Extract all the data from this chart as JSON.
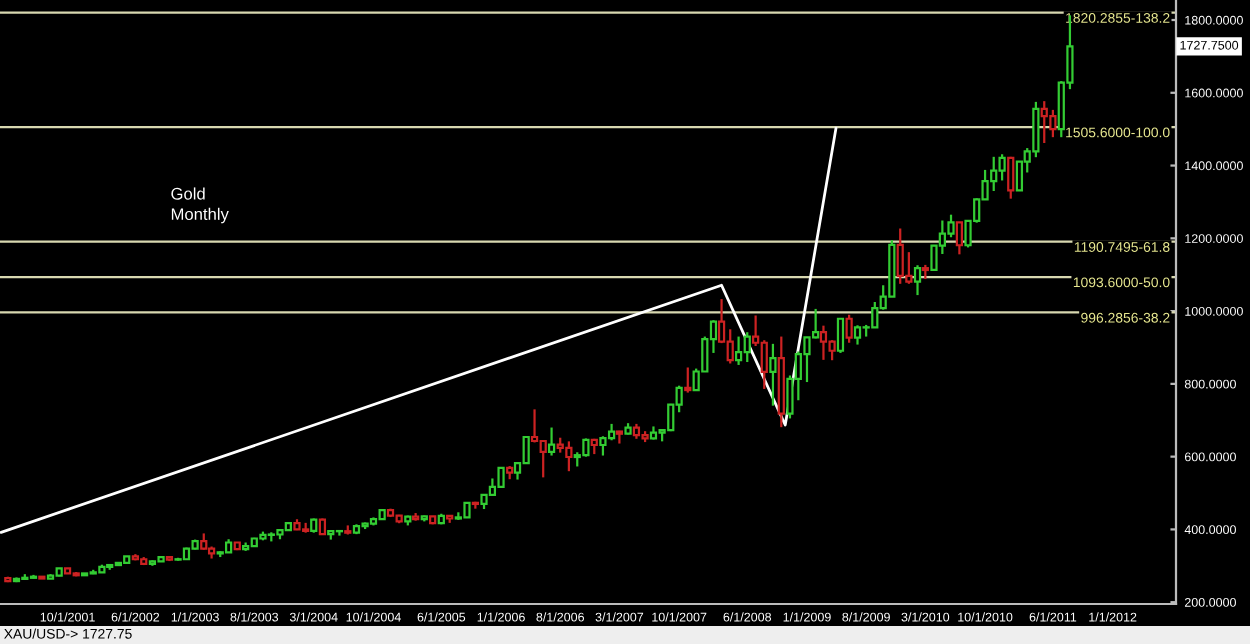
{
  "chart_data": {
    "type": "candlestick",
    "x": [
      "2001-03",
      "2001-04",
      "2001-05",
      "2001-06",
      "2001-07",
      "2001-08",
      "2001-09",
      "2001-10",
      "2001-11",
      "2001-12",
      "2002-01",
      "2002-02",
      "2002-03",
      "2002-04",
      "2002-05",
      "2002-06",
      "2002-07",
      "2002-08",
      "2002-09",
      "2002-10",
      "2002-11",
      "2002-12",
      "2003-01",
      "2003-02",
      "2003-03",
      "2003-04",
      "2003-05",
      "2003-06",
      "2003-07",
      "2003-08",
      "2003-09",
      "2003-10",
      "2003-11",
      "2003-12",
      "2004-01",
      "2004-02",
      "2004-03",
      "2004-04",
      "2004-05",
      "2004-06",
      "2004-07",
      "2004-08",
      "2004-09",
      "2004-10",
      "2004-11",
      "2004-12",
      "2005-01",
      "2005-02",
      "2005-03",
      "2005-04",
      "2005-05",
      "2005-06",
      "2005-07",
      "2005-08",
      "2005-09",
      "2005-10",
      "2005-11",
      "2005-12",
      "2006-01",
      "2006-02",
      "2006-03",
      "2006-04",
      "2006-05",
      "2006-06",
      "2006-07",
      "2006-08",
      "2006-09",
      "2006-10",
      "2006-11",
      "2006-12",
      "2007-01",
      "2007-02",
      "2007-03",
      "2007-04",
      "2007-05",
      "2007-06",
      "2007-07",
      "2007-08",
      "2007-09",
      "2007-10",
      "2007-11",
      "2007-12",
      "2008-01",
      "2008-02",
      "2008-03",
      "2008-04",
      "2008-05",
      "2008-06",
      "2008-07",
      "2008-08",
      "2008-09",
      "2008-10",
      "2008-11",
      "2008-12",
      "2009-01",
      "2009-02",
      "2009-03",
      "2009-04",
      "2009-05",
      "2009-06",
      "2009-07",
      "2009-08",
      "2009-09",
      "2009-10",
      "2009-11",
      "2009-12",
      "2010-01",
      "2010-02",
      "2010-03",
      "2010-04",
      "2010-05",
      "2010-06",
      "2010-07",
      "2010-08",
      "2010-09",
      "2010-10",
      "2010-11",
      "2010-12",
      "2011-01",
      "2011-02",
      "2011-03",
      "2011-04",
      "2011-05",
      "2011-06",
      "2011-07",
      "2011-08"
    ],
    "ohlc": [
      [
        266,
        270,
        255,
        258
      ],
      [
        258,
        268,
        255,
        264
      ],
      [
        264,
        277,
        263,
        267
      ],
      [
        267,
        275,
        265,
        270
      ],
      [
        270,
        272,
        264,
        265
      ],
      [
        265,
        277,
        264,
        273
      ],
      [
        273,
        293,
        271,
        293
      ],
      [
        293,
        294,
        278,
        279
      ],
      [
        279,
        283,
        271,
        274
      ],
      [
        274,
        280,
        272,
        279
      ],
      [
        279,
        289,
        277,
        282
      ],
      [
        282,
        303,
        281,
        297
      ],
      [
        297,
        304,
        289,
        302
      ],
      [
        302,
        310,
        300,
        308
      ],
      [
        308,
        327,
        307,
        326
      ],
      [
        326,
        332,
        315,
        318
      ],
      [
        318,
        324,
        302,
        305
      ],
      [
        305,
        315,
        300,
        312
      ],
      [
        312,
        326,
        311,
        324
      ],
      [
        324,
        325,
        313,
        317
      ],
      [
        317,
        322,
        314,
        318
      ],
      [
        318,
        350,
        317,
        347
      ],
      [
        347,
        372,
        345,
        368
      ],
      [
        368,
        389,
        344,
        347
      ],
      [
        347,
        353,
        320,
        334
      ],
      [
        334,
        340,
        324,
        337
      ],
      [
        337,
        373,
        336,
        364
      ],
      [
        364,
        365,
        343,
        346
      ],
      [
        346,
        364,
        341,
        354
      ],
      [
        354,
        377,
        353,
        375
      ],
      [
        375,
        394,
        370,
        385
      ],
      [
        385,
        392,
        367,
        386
      ],
      [
        386,
        401,
        373,
        398
      ],
      [
        398,
        418,
        397,
        417
      ],
      [
        417,
        428,
        398,
        400
      ],
      [
        400,
        418,
        391,
        396
      ],
      [
        396,
        430,
        391,
        427
      ],
      [
        427,
        430,
        386,
        387
      ],
      [
        387,
        396,
        372,
        395
      ],
      [
        395,
        398,
        383,
        395
      ],
      [
        395,
        411,
        386,
        391
      ],
      [
        391,
        414,
        387,
        409
      ],
      [
        409,
        419,
        401,
        416
      ],
      [
        416,
        433,
        411,
        428
      ],
      [
        428,
        455,
        427,
        453
      ],
      [
        453,
        457,
        434,
        438
      ],
      [
        438,
        440,
        417,
        422
      ],
      [
        422,
        438,
        411,
        435
      ],
      [
        435,
        445,
        424,
        428
      ],
      [
        428,
        438,
        422,
        436
      ],
      [
        436,
        437,
        414,
        417
      ],
      [
        417,
        443,
        414,
        437
      ],
      [
        437,
        438,
        418,
        430
      ],
      [
        430,
        447,
        426,
        433
      ],
      [
        433,
        475,
        433,
        473
      ],
      [
        473,
        476,
        457,
        470
      ],
      [
        470,
        497,
        456,
        495
      ],
      [
        495,
        540,
        492,
        517
      ],
      [
        517,
        571,
        515,
        569
      ],
      [
        569,
        574,
        538,
        556
      ],
      [
        556,
        585,
        537,
        582
      ],
      [
        582,
        654,
        582,
        654
      ],
      [
        654,
        730,
        639,
        643
      ],
      [
        643,
        645,
        543,
        613
      ],
      [
        613,
        680,
        603,
        633
      ],
      [
        633,
        652,
        611,
        624
      ],
      [
        624,
        642,
        560,
        599
      ],
      [
        599,
        612,
        573,
        604
      ],
      [
        604,
        650,
        600,
        646
      ],
      [
        646,
        649,
        607,
        632
      ],
      [
        632,
        656,
        603,
        651
      ],
      [
        651,
        690,
        645,
        669
      ],
      [
        669,
        671,
        636,
        663
      ],
      [
        663,
        692,
        661,
        680
      ],
      [
        680,
        690,
        649,
        659
      ],
      [
        659,
        670,
        640,
        650
      ],
      [
        650,
        683,
        647,
        666
      ],
      [
        666,
        675,
        642,
        673
      ],
      [
        673,
        745,
        670,
        743
      ],
      [
        743,
        795,
        722,
        789
      ],
      [
        789,
        845,
        776,
        783
      ],
      [
        783,
        842,
        781,
        834
      ],
      [
        834,
        930,
        834,
        923
      ],
      [
        923,
        975,
        885,
        971
      ],
      [
        971,
        1033,
        912,
        916
      ],
      [
        916,
        950,
        856,
        865
      ],
      [
        865,
        930,
        852,
        887
      ],
      [
        887,
        942,
        860,
        930
      ],
      [
        930,
        988,
        904,
        913
      ],
      [
        913,
        920,
        786,
        833
      ],
      [
        833,
        910,
        740,
        871
      ],
      [
        871,
        930,
        681,
        718
      ],
      [
        718,
        823,
        705,
        814
      ],
      [
        814,
        889,
        755,
        882
      ],
      [
        882,
        929,
        805,
        928
      ],
      [
        928,
        1006,
        925,
        942
      ],
      [
        942,
        960,
        866,
        916
      ],
      [
        916,
        920,
        865,
        891
      ],
      [
        891,
        980,
        885,
        979
      ],
      [
        979,
        990,
        913,
        927
      ],
      [
        927,
        961,
        908,
        955
      ],
      [
        955,
        962,
        930,
        955
      ],
      [
        955,
        1025,
        955,
        1008
      ],
      [
        1008,
        1071,
        1004,
        1040
      ],
      [
        1040,
        1195,
        1040,
        1182
      ],
      [
        1182,
        1227,
        1075,
        1097
      ],
      [
        1097,
        1162,
        1075,
        1081
      ],
      [
        1081,
        1126,
        1044,
        1118
      ],
      [
        1118,
        1127,
        1088,
        1113
      ],
      [
        1113,
        1180,
        1113,
        1180
      ],
      [
        1180,
        1249,
        1157,
        1213
      ],
      [
        1213,
        1265,
        1203,
        1244
      ],
      [
        1244,
        1245,
        1156,
        1181
      ],
      [
        1181,
        1248,
        1175,
        1248
      ],
      [
        1248,
        1310,
        1243,
        1307
      ],
      [
        1307,
        1388,
        1306,
        1357
      ],
      [
        1357,
        1424,
        1330,
        1386
      ],
      [
        1386,
        1431,
        1359,
        1421
      ],
      [
        1421,
        1424,
        1309,
        1332
      ],
      [
        1332,
        1412,
        1331,
        1411
      ],
      [
        1411,
        1448,
        1381,
        1439
      ],
      [
        1439,
        1575,
        1423,
        1556
      ],
      [
        1556,
        1577,
        1462,
        1536
      ],
      [
        1536,
        1553,
        1478,
        1500
      ],
      [
        1500,
        1632,
        1478,
        1628
      ],
      [
        1628,
        1813,
        1610,
        1727.75
      ]
    ],
    "series": [
      {
        "type": "line",
        "x": [
          "2001-02-05",
          "2008-03-01",
          "2008-10-15",
          "2009-04-15"
        ],
        "values": [
          392,
          1071,
          687,
          1503
        ],
        "color": "#ffffff"
      }
    ],
    "ref_lines": [
      {
        "axis": "y",
        "value": 1820.2855,
        "label": "1820.2855-138.2",
        "color": "#d8d8b0"
      },
      {
        "axis": "y",
        "value": 1505.6,
        "label": "1505.6000-100.0",
        "color": "#d8d8b0"
      },
      {
        "axis": "y",
        "value": 1190.7495,
        "label": "1190.7495-61.8",
        "color": "#d8d8b0"
      },
      {
        "axis": "y",
        "value": 1093.6,
        "label": "1093.6000-50.0",
        "color": "#d8d8b0"
      },
      {
        "axis": "y",
        "value": 996.2856,
        "label": "996.2856-38.2",
        "color": "#d8d8b0"
      }
    ],
    "annotations": [
      "Gold\nMonthly",
      "1727.7500",
      "XAU/USD-> 1727.75"
    ],
    "xlim": [
      "2001-02-01",
      "2012-08-15"
    ],
    "xticks": [
      {
        "value": "2001-10-01",
        "label": "10/1/2001"
      },
      {
        "value": "2002-06-01",
        "label": "6/1/2002"
      },
      {
        "value": "2003-01-01",
        "label": "1/1/2003"
      },
      {
        "value": "2003-08-01",
        "label": "8/1/2003"
      },
      {
        "value": "2004-03-01",
        "label": "3/1/2004"
      },
      {
        "value": "2004-10-01",
        "label": "10/1/2004"
      },
      {
        "value": "2005-06-01",
        "label": "6/1/2005"
      },
      {
        "value": "2006-01-01",
        "label": "1/1/2006"
      },
      {
        "value": "2006-08-01",
        "label": "8/1/2006"
      },
      {
        "value": "2007-03-01",
        "label": "3/1/2007"
      },
      {
        "value": "2007-10-01",
        "label": "10/1/2007"
      },
      {
        "value": "2008-06-01",
        "label": "6/1/2008"
      },
      {
        "value": "2009-01-01",
        "label": "1/1/2009"
      },
      {
        "value": "2009-08-01",
        "label": "8/1/2009"
      },
      {
        "value": "2010-03-01",
        "label": "3/1/2010"
      },
      {
        "value": "2010-10-01",
        "label": "10/1/2010"
      },
      {
        "value": "2011-06-01",
        "label": "6/1/2011"
      },
      {
        "value": "2012-01-01",
        "label": "1/1/2012"
      }
    ],
    "ylim": [
      195,
      1855
    ],
    "yticks": [
      {
        "value": 200,
        "label": "200.0000"
      },
      {
        "value": 400,
        "label": "400.0000"
      },
      {
        "value": 600,
        "label": "600.0000"
      },
      {
        "value": 800,
        "label": "800.0000"
      },
      {
        "value": 1000,
        "label": "1000.0000"
      },
      {
        "value": 1200,
        "label": "1200.0000"
      },
      {
        "value": 1400,
        "label": "1400.0000"
      },
      {
        "value": 1600,
        "label": "1600.0000"
      },
      {
        "value": 1800,
        "label": "1800.0000"
      }
    ]
  }
}
